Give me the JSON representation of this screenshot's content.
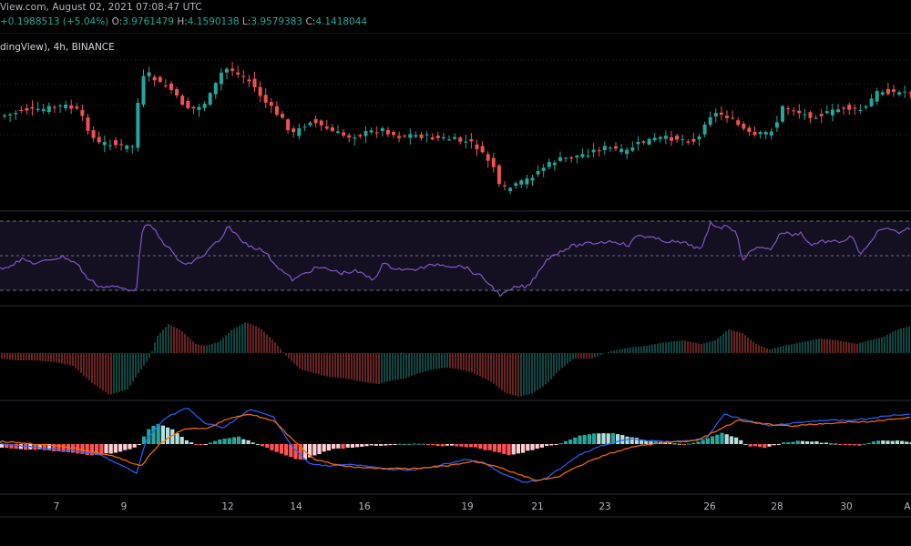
{
  "header": {
    "source_date": "View.com, August 02, 2021 07:08:47 UTC",
    "change": "+0.1988513 (+5.04%)",
    "open_label": "O:",
    "open": "3.9761479",
    "high_label": "H:",
    "high": "4.1590138",
    "low_label": "L:",
    "low": "3.9579383",
    "close_label": "C:",
    "close": "4.1418044"
  },
  "chart_title": "dingView), 4h, BINANCE",
  "colors": {
    "up": "#26a69a",
    "down": "#ef5350",
    "rsi": "#7e57c2",
    "macd": "#2962ff",
    "signal": "#ff6d00",
    "grid": "#2a2e39"
  },
  "chart_data": {
    "type": "candlestick",
    "x_ticks": [
      "7",
      "9",
      "12",
      "14",
      "16",
      "19",
      "21",
      "23",
      "26",
      "28",
      "30",
      "A"
    ],
    "price_keyframes": [
      [
        0,
        128
      ],
      [
        15,
        126
      ],
      [
        30,
        120
      ],
      [
        45,
        122
      ],
      [
        60,
        118
      ],
      [
        75,
        116
      ],
      [
        90,
        122
      ],
      [
        100,
        140
      ],
      [
        110,
        158
      ],
      [
        125,
        157
      ],
      [
        140,
        162
      ],
      [
        150,
        160
      ],
      [
        158,
        92
      ],
      [
        165,
        80
      ],
      [
        172,
        86
      ],
      [
        180,
        92
      ],
      [
        190,
        96
      ],
      [
        200,
        110
      ],
      [
        210,
        118
      ],
      [
        220,
        120
      ],
      [
        232,
        110
      ],
      [
        240,
        95
      ],
      [
        248,
        78
      ],
      [
        256,
        74
      ],
      [
        265,
        82
      ],
      [
        275,
        86
      ],
      [
        285,
        98
      ],
      [
        295,
        112
      ],
      [
        305,
        122
      ],
      [
        315,
        132
      ],
      [
        325,
        148
      ],
      [
        335,
        140
      ],
      [
        345,
        132
      ],
      [
        355,
        138
      ],
      [
        370,
        145
      ],
      [
        385,
        150
      ],
      [
        400,
        148
      ],
      [
        410,
        145
      ],
      [
        425,
        142
      ],
      [
        440,
        150
      ],
      [
        455,
        148
      ],
      [
        470,
        150
      ],
      [
        485,
        152
      ],
      [
        500,
        153
      ],
      [
        515,
        156
      ],
      [
        525,
        158
      ],
      [
        535,
        172
      ],
      [
        545,
        180
      ],
      [
        552,
        205
      ],
      [
        560,
        208
      ],
      [
        570,
        204
      ],
      [
        585,
        196
      ],
      [
        600,
        184
      ],
      [
        615,
        176
      ],
      [
        635,
        172
      ],
      [
        650,
        168
      ],
      [
        665,
        162
      ],
      [
        680,
        164
      ],
      [
        690,
        168
      ],
      [
        700,
        160
      ],
      [
        715,
        154
      ],
      [
        730,
        152
      ],
      [
        745,
        152
      ],
      [
        760,
        154
      ],
      [
        770,
        155
      ],
      [
        780,
        128
      ],
      [
        790,
        125
      ],
      [
        800,
        126
      ],
      [
        815,
        138
      ],
      [
        830,
        150
      ],
      [
        845,
        146
      ],
      [
        855,
        140
      ],
      [
        862,
        118
      ],
      [
        875,
        120
      ],
      [
        885,
        126
      ],
      [
        895,
        127
      ],
      [
        905,
        126
      ],
      [
        915,
        124
      ],
      [
        930,
        118
      ],
      [
        945,
        122
      ],
      [
        955,
        118
      ],
      [
        965,
        102
      ],
      [
        975,
        100
      ],
      [
        990,
        102
      ],
      [
        1000,
        100
      ]
    ],
    "rsi_keyframes": [
      [
        0,
        295
      ],
      [
        10,
        292
      ],
      [
        25,
        285
      ],
      [
        40,
        290
      ],
      [
        55,
        285
      ],
      [
        70,
        282
      ],
      [
        85,
        290
      ],
      [
        95,
        305
      ],
      [
        110,
        315
      ],
      [
        125,
        315
      ],
      [
        140,
        318
      ],
      [
        150,
        318
      ],
      [
        155,
        255
      ],
      [
        160,
        248
      ],
      [
        168,
        250
      ],
      [
        175,
        262
      ],
      [
        185,
        272
      ],
      [
        195,
        285
      ],
      [
        205,
        292
      ],
      [
        215,
        285
      ],
      [
        225,
        280
      ],
      [
        235,
        268
      ],
      [
        245,
        262
      ],
      [
        250,
        248
      ],
      [
        258,
        256
      ],
      [
        265,
        265
      ],
      [
        275,
        270
      ],
      [
        290,
        276
      ],
      [
        300,
        288
      ],
      [
        310,
        298
      ],
      [
        322,
        308
      ],
      [
        335,
        300
      ],
      [
        348,
        294
      ],
      [
        360,
        296
      ],
      [
        375,
        300
      ],
      [
        390,
        298
      ],
      [
        400,
        302
      ],
      [
        410,
        308
      ],
      [
        420,
        290
      ],
      [
        435,
        295
      ],
      [
        450,
        297
      ],
      [
        465,
        294
      ],
      [
        480,
        290
      ],
      [
        495,
        292
      ],
      [
        510,
        293
      ],
      [
        520,
        300
      ],
      [
        530,
        305
      ],
      [
        540,
        315
      ],
      [
        550,
        325
      ],
      [
        558,
        320
      ],
      [
        568,
        315
      ],
      [
        580,
        315
      ],
      [
        590,
        300
      ],
      [
        600,
        285
      ],
      [
        615,
        276
      ],
      [
        630,
        270
      ],
      [
        645,
        268
      ],
      [
        660,
        266
      ],
      [
        675,
        265
      ],
      [
        690,
        270
      ],
      [
        700,
        258
      ],
      [
        710,
        260
      ],
      [
        725,
        264
      ],
      [
        740,
        266
      ],
      [
        755,
        268
      ],
      [
        770,
        275
      ],
      [
        780,
        245
      ],
      [
        790,
        250
      ],
      [
        800,
        248
      ],
      [
        808,
        255
      ],
      [
        815,
        285
      ],
      [
        825,
        276
      ],
      [
        835,
        270
      ],
      [
        845,
        275
      ],
      [
        858,
        255
      ],
      [
        870,
        258
      ],
      [
        880,
        256
      ],
      [
        890,
        270
      ],
      [
        900,
        265
      ],
      [
        915,
        266
      ],
      [
        925,
        265
      ],
      [
        935,
        260
      ],
      [
        945,
        280
      ],
      [
        955,
        268
      ],
      [
        962,
        255
      ],
      [
        975,
        252
      ],
      [
        985,
        256
      ],
      [
        1000,
        250
      ]
    ],
    "osc_keyframes": [
      [
        0,
        -6
      ],
      [
        20,
        -8
      ],
      [
        40,
        -8
      ],
      [
        60,
        -10
      ],
      [
        80,
        -14
      ],
      [
        100,
        -32
      ],
      [
        120,
        -46
      ],
      [
        140,
        -40
      ],
      [
        155,
        -18
      ],
      [
        165,
        -4
      ],
      [
        172,
        18
      ],
      [
        185,
        32
      ],
      [
        200,
        24
      ],
      [
        215,
        10
      ],
      [
        225,
        8
      ],
      [
        240,
        12
      ],
      [
        255,
        26
      ],
      [
        270,
        34
      ],
      [
        285,
        28
      ],
      [
        300,
        14
      ],
      [
        315,
        -4
      ],
      [
        330,
        -18
      ],
      [
        345,
        -22
      ],
      [
        360,
        -26
      ],
      [
        380,
        -28
      ],
      [
        400,
        -32
      ],
      [
        415,
        -34
      ],
      [
        430,
        -30
      ],
      [
        445,
        -28
      ],
      [
        460,
        -22
      ],
      [
        475,
        -18
      ],
      [
        490,
        -16
      ],
      [
        505,
        -18
      ],
      [
        520,
        -22
      ],
      [
        540,
        -32
      ],
      [
        555,
        -44
      ],
      [
        570,
        -48
      ],
      [
        585,
        -44
      ],
      [
        600,
        -34
      ],
      [
        615,
        -18
      ],
      [
        630,
        -6
      ],
      [
        650,
        -6
      ],
      [
        670,
        2
      ],
      [
        690,
        6
      ],
      [
        710,
        8
      ],
      [
        730,
        12
      ],
      [
        750,
        14
      ],
      [
        770,
        10
      ],
      [
        785,
        14
      ],
      [
        800,
        26
      ],
      [
        815,
        22
      ],
      [
        830,
        10
      ],
      [
        845,
        4
      ],
      [
        860,
        8
      ],
      [
        880,
        12
      ],
      [
        900,
        16
      ],
      [
        920,
        14
      ],
      [
        940,
        10
      ],
      [
        955,
        14
      ],
      [
        970,
        18
      ],
      [
        985,
        26
      ],
      [
        1000,
        30
      ]
    ],
    "macd_line": [
      [
        0,
        487
      ],
      [
        40,
        492
      ],
      [
        80,
        495
      ],
      [
        110,
        500
      ],
      [
        150,
        520
      ],
      [
        160,
        485
      ],
      [
        180,
        460
      ],
      [
        205,
        448
      ],
      [
        225,
        465
      ],
      [
        245,
        470
      ],
      [
        275,
        450
      ],
      [
        300,
        458
      ],
      [
        320,
        490
      ],
      [
        340,
        510
      ],
      [
        360,
        512
      ],
      [
        380,
        510
      ],
      [
        400,
        512
      ],
      [
        420,
        515
      ],
      [
        450,
        517
      ],
      [
        480,
        512
      ],
      [
        510,
        505
      ],
      [
        530,
        508
      ],
      [
        550,
        520
      ],
      [
        575,
        530
      ],
      [
        595,
        528
      ],
      [
        615,
        515
      ],
      [
        635,
        500
      ],
      [
        660,
        490
      ],
      [
        690,
        482
      ],
      [
        720,
        485
      ],
      [
        750,
        485
      ],
      [
        775,
        482
      ],
      [
        795,
        455
      ],
      [
        820,
        462
      ],
      [
        845,
        468
      ],
      [
        870,
        465
      ],
      [
        900,
        462
      ],
      [
        930,
        462
      ],
      [
        955,
        460
      ],
      [
        980,
        456
      ],
      [
        1000,
        455
      ]
    ],
    "signal_line": [
      [
        0,
        485
      ],
      [
        40,
        488
      ],
      [
        80,
        492
      ],
      [
        120,
        500
      ],
      [
        155,
        512
      ],
      [
        175,
        488
      ],
      [
        200,
        472
      ],
      [
        230,
        470
      ],
      [
        250,
        460
      ],
      [
        275,
        455
      ],
      [
        300,
        462
      ],
      [
        320,
        482
      ],
      [
        345,
        505
      ],
      [
        375,
        512
      ],
      [
        400,
        514
      ],
      [
        430,
        515
      ],
      [
        460,
        515
      ],
      [
        490,
        512
      ],
      [
        520,
        507
      ],
      [
        545,
        512
      ],
      [
        565,
        520
      ],
      [
        590,
        528
      ],
      [
        610,
        525
      ],
      [
        640,
        510
      ],
      [
        670,
        498
      ],
      [
        700,
        490
      ],
      [
        735,
        486
      ],
      [
        765,
        484
      ],
      [
        790,
        472
      ],
      [
        810,
        462
      ],
      [
        840,
        466
      ],
      [
        870,
        468
      ],
      [
        900,
        466
      ],
      [
        930,
        464
      ],
      [
        960,
        463
      ],
      [
        985,
        460
      ],
      [
        1000,
        458
      ]
    ],
    "hist_keyframes": [
      [
        0,
        -4
      ],
      [
        20,
        -6
      ],
      [
        40,
        -6
      ],
      [
        60,
        -8
      ],
      [
        80,
        -10
      ],
      [
        100,
        -12
      ],
      [
        120,
        -10
      ],
      [
        140,
        -6
      ],
      [
        150,
        -2
      ],
      [
        160,
        16
      ],
      [
        170,
        22
      ],
      [
        185,
        18
      ],
      [
        200,
        6
      ],
      [
        215,
        -2
      ],
      [
        230,
        2
      ],
      [
        245,
        6
      ],
      [
        260,
        8
      ],
      [
        280,
        0
      ],
      [
        295,
        -6
      ],
      [
        315,
        -14
      ],
      [
        330,
        -18
      ],
      [
        345,
        -12
      ],
      [
        360,
        -6
      ],
      [
        380,
        -4
      ],
      [
        400,
        -2
      ],
      [
        420,
        -2
      ],
      [
        440,
        0
      ],
      [
        460,
        0
      ],
      [
        480,
        -2
      ],
      [
        500,
        -2
      ],
      [
        520,
        -4
      ],
      [
        540,
        -8
      ],
      [
        555,
        -12
      ],
      [
        570,
        -10
      ],
      [
        590,
        -4
      ],
      [
        610,
        0
      ],
      [
        630,
        8
      ],
      [
        650,
        12
      ],
      [
        670,
        12
      ],
      [
        690,
        8
      ],
      [
        710,
        4
      ],
      [
        730,
        2
      ],
      [
        750,
        0
      ],
      [
        770,
        4
      ],
      [
        790,
        12
      ],
      [
        805,
        8
      ],
      [
        820,
        -2
      ],
      [
        840,
        -4
      ],
      [
        860,
        2
      ],
      [
        880,
        4
      ],
      [
        900,
        2
      ],
      [
        920,
        0
      ],
      [
        940,
        -2
      ],
      [
        960,
        4
      ],
      [
        980,
        4
      ],
      [
        1000,
        2
      ]
    ]
  }
}
